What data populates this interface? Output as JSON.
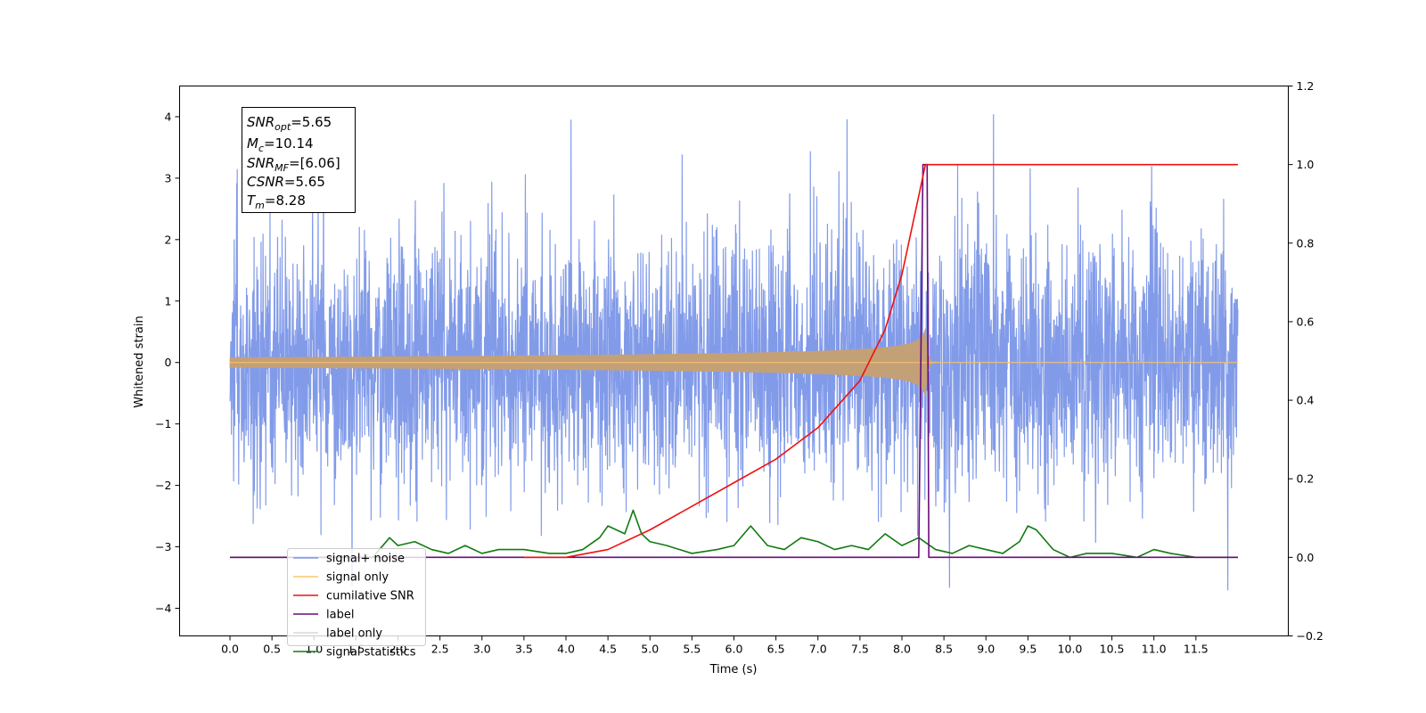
{
  "chart_data": {
    "type": "line",
    "title": "",
    "xlabel": "Time (s)",
    "ylabel": "Whitened strain",
    "y2label": "",
    "xlim": [
      -0.6,
      12.6
    ],
    "ylim": [
      -4.45,
      4.5
    ],
    "y2lim": [
      -0.2,
      1.2
    ],
    "x_ticks": [
      "0.0",
      "0.5",
      "1.0",
      "1.5",
      "2.0",
      "2.5",
      "3.0",
      "3.5",
      "4.0",
      "4.5",
      "5.0",
      "5.5",
      "6.0",
      "6.5",
      "7.0",
      "7.5",
      "8.0",
      "8.5",
      "9.0",
      "9.5",
      "10.0",
      "10.5",
      "11.0",
      "11.5"
    ],
    "y_ticks": [
      "−4",
      "−3",
      "−2",
      "−1",
      "0",
      "1",
      "2",
      "3",
      "4"
    ],
    "y2_ticks": [
      "−0.2",
      "0.0",
      "0.2",
      "0.4",
      "0.6",
      "0.8",
      "1.0",
      "1.2"
    ],
    "grid": false,
    "legend_position": "lower-left",
    "info_box": [
      {
        "var": "SNR",
        "sub": "opt",
        "value": "=5.65"
      },
      {
        "var": "M",
        "sub": "c",
        "value": "=10.14"
      },
      {
        "var": "SNR",
        "sub": "MF",
        "value": "=[6.06]"
      },
      {
        "var": "CSNR",
        "sub": "",
        "value": "=5.65"
      },
      {
        "var": "T",
        "sub": "m",
        "value": "=8.28"
      }
    ],
    "series": [
      {
        "name": "signal+ noise",
        "color": "#7b96e8",
        "axis": "left",
        "description_x_range": [
          0.0,
          12.0
        ],
        "approx_range": [
          -4.05,
          4.1
        ]
      },
      {
        "name": "signal only",
        "color": "#ffc66e",
        "axis": "left",
        "peak_time": 8.28,
        "peak_amplitude": 0.6
      },
      {
        "name": "cumilative SNR",
        "color": "#ee1111",
        "axis": "right",
        "x": [
          4.0,
          4.5,
          5.0,
          5.5,
          6.0,
          6.5,
          7.0,
          7.5,
          7.8,
          8.0,
          8.2,
          8.28,
          12.0
        ],
        "y": [
          0.0,
          0.02,
          0.07,
          0.13,
          0.19,
          0.25,
          0.33,
          0.45,
          0.58,
          0.72,
          0.92,
          1.0,
          1.0
        ]
      },
      {
        "name": "label",
        "color": "#6a0c7a",
        "axis": "right",
        "x": [
          0.0,
          8.2,
          8.25,
          8.3,
          8.32,
          12.0
        ],
        "y": [
          0.0,
          0.0,
          1.0,
          1.0,
          0.0,
          0.0
        ]
      },
      {
        "name": "label only",
        "color": "#d8d8d8",
        "axis": "right",
        "x": [],
        "y": []
      },
      {
        "name": "signal statistics",
        "color": "#117a11",
        "axis": "right",
        "x": [
          0.0,
          1.7,
          1.9,
          2.0,
          2.2,
          2.4,
          2.6,
          2.8,
          3.0,
          3.2,
          3.5,
          3.8,
          4.0,
          4.2,
          4.4,
          4.5,
          4.6,
          4.7,
          4.8,
          4.9,
          5.0,
          5.2,
          5.5,
          5.8,
          6.0,
          6.2,
          6.4,
          6.6,
          6.8,
          7.0,
          7.2,
          7.4,
          7.6,
          7.8,
          8.0,
          8.2,
          8.4,
          8.6,
          8.8,
          9.0,
          9.2,
          9.4,
          9.5,
          9.6,
          9.8,
          10.0,
          10.2,
          10.5,
          10.8,
          11.0,
          11.2,
          11.5,
          12.0
        ],
        "y": [
          0.0,
          0.0,
          0.05,
          0.03,
          0.04,
          0.02,
          0.01,
          0.03,
          0.01,
          0.02,
          0.02,
          0.01,
          0.01,
          0.02,
          0.05,
          0.08,
          0.07,
          0.06,
          0.12,
          0.06,
          0.04,
          0.03,
          0.01,
          0.02,
          0.03,
          0.08,
          0.03,
          0.02,
          0.05,
          0.04,
          0.02,
          0.03,
          0.02,
          0.06,
          0.03,
          0.05,
          0.02,
          0.01,
          0.03,
          0.02,
          0.01,
          0.04,
          0.08,
          0.07,
          0.02,
          0.0,
          0.01,
          0.01,
          0.0,
          0.02,
          0.01,
          0.0,
          0.0
        ]
      }
    ]
  }
}
